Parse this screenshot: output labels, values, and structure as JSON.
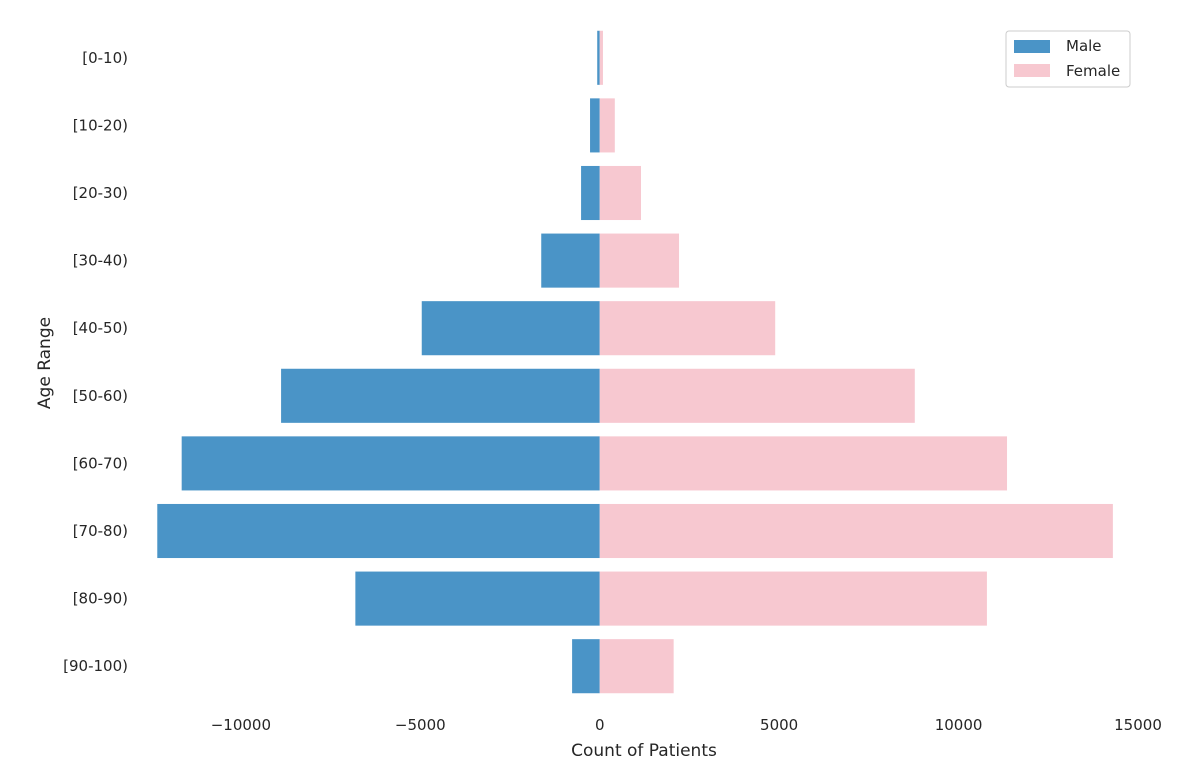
{
  "chart_data": {
    "type": "bar",
    "orientation": "horizontal",
    "title": "",
    "xlabel": "Count of Patients",
    "ylabel": "Age Range",
    "categories": [
      "[0-10)",
      "[10-20)",
      "[20-30)",
      "[30-40)",
      "[40-50)",
      "[50-60)",
      "[60-70)",
      "[70-80)",
      "[80-90)",
      "[90-100)"
    ],
    "series": [
      {
        "name": "Male",
        "color": "#4a94c7",
        "values": [
          -70,
          -270,
          -520,
          -1630,
          -4960,
          -8880,
          -11650,
          -12330,
          -6810,
          -770
        ]
      },
      {
        "name": "Female",
        "color": "#f7c8d0",
        "values": [
          90,
          420,
          1150,
          2210,
          4890,
          8780,
          11350,
          14300,
          10790,
          2060
        ]
      }
    ],
    "xticks": [
      -10000,
      -5000,
      0,
      5000,
      10000,
      15000
    ],
    "xtick_labels": [
      "−10000",
      "−5000",
      "0",
      "5000",
      "10000",
      "15000"
    ],
    "xlim": [
      -12700,
      15000
    ],
    "grid": false,
    "legend_position": "top-right"
  }
}
